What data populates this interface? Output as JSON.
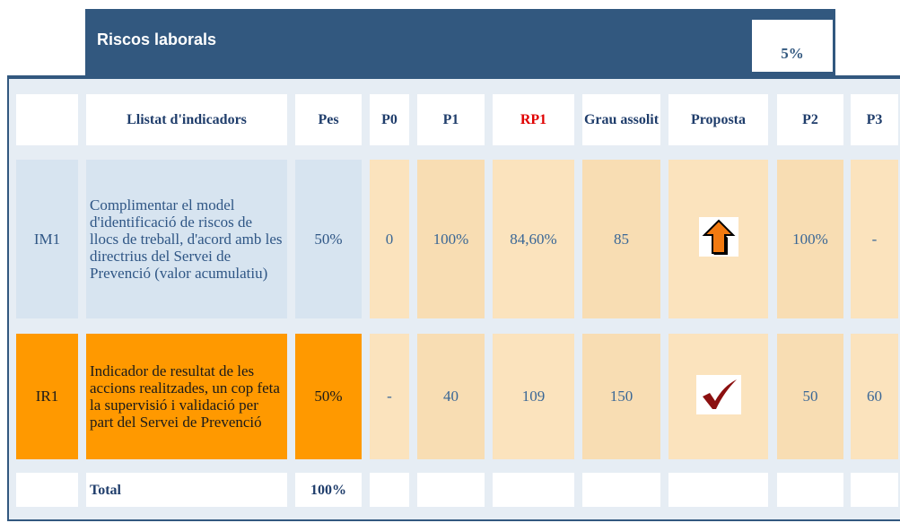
{
  "header": {
    "title": "Riscos laborals",
    "weight": "5%"
  },
  "table": {
    "columns": [
      "Llistat d'indicadors",
      "Pes",
      "P0",
      "P1",
      "RP1",
      "Grau assolit",
      "Proposta",
      "P2",
      "P3"
    ],
    "rows": [
      {
        "code": "IM1",
        "description": "Complimentar el model d'identificació de riscos de llocs de treball, d'acord amb les directrius del Servei de Prevenció (valor acumulatiu)",
        "pes": "50%",
        "p0": "0",
        "p1": "100%",
        "rp1": "84,60%",
        "grau": "85",
        "p2": "100%",
        "p3": "-"
      },
      {
        "code": "IR1",
        "description": "Indicador de resultat de les accions realitzades, un cop feta la supervisió i validació per part del Servei de Prevenció",
        "pes": "50%",
        "p0": "-",
        "p1": "40",
        "rp1": "109",
        "grau": "150",
        "p2": "50",
        "p3": "60"
      }
    ],
    "total": {
      "label": "Total",
      "pes": "100%"
    }
  }
}
